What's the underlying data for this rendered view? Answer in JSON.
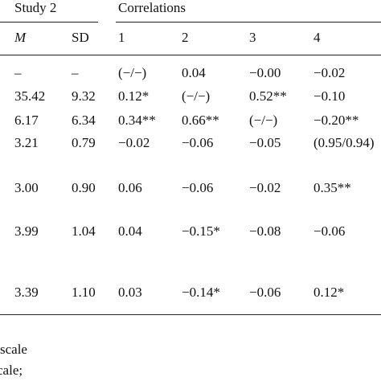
{
  "header": {
    "study_label": "Study 2",
    "correlations_label": "Correlations",
    "columns": [
      "M",
      "SD",
      "1",
      "2",
      "3",
      "4"
    ]
  },
  "rows": [
    [
      "–",
      "–",
      "(−/−)",
      "0.04",
      "−0.00",
      "−0.02"
    ],
    [
      "35.42",
      "9.32",
      "0.12*",
      "(−/−)",
      "0.52**",
      "−0.10"
    ],
    [
      "6.17",
      "6.34",
      "0.34**",
      "0.66**",
      "(−/−)",
      "−0.20**"
    ],
    [
      "3.21",
      "0.79",
      "−0.02",
      "−0.06",
      "−0.05",
      "(0.95/0.94)"
    ],
    [
      "3.00",
      "0.90",
      "0.06",
      "−0.06",
      "−0.02",
      "0.35**"
    ],
    [
      "3.99",
      "1.04",
      "0.04",
      "−0.15*",
      "−0.08",
      "−0.06"
    ],
    [
      "3.39",
      "1.10",
      "0.03",
      "−0.14*",
      "−0.06",
      "0.12*"
    ]
  ],
  "footnotes": [
    "scale",
    "cale;"
  ]
}
